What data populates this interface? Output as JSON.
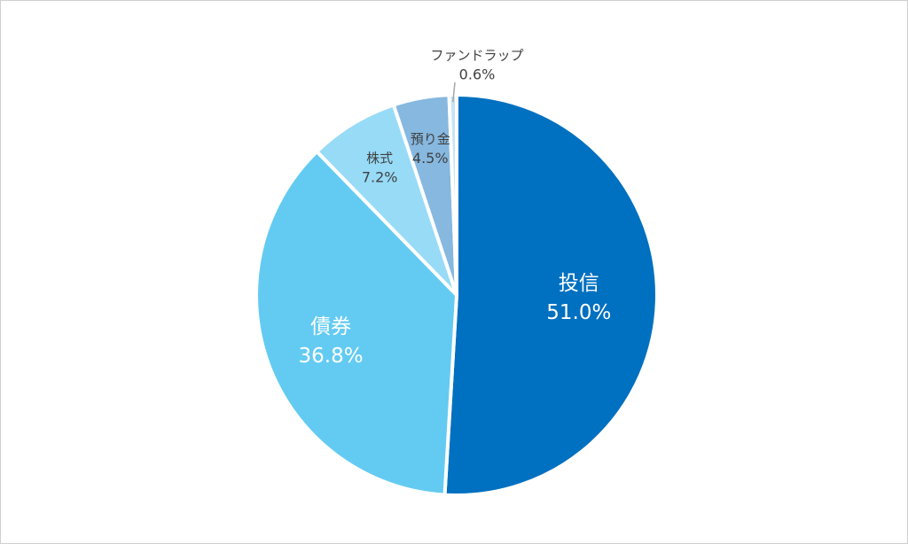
{
  "chart_data": {
    "type": "pie",
    "start_angle_deg": 0,
    "direction": "clockwise",
    "slices": [
      {
        "label": "投信",
        "value": 51.0,
        "value_label": "51.0%",
        "color": "#0070c0",
        "text_color": "#ffffff"
      },
      {
        "label": "債券",
        "value": 36.8,
        "value_label": "36.8%",
        "color": "#63cbf2",
        "text_color": "#ffffff"
      },
      {
        "label": "株式",
        "value": 7.2,
        "value_label": "7.2%",
        "color": "#97dbf7",
        "text_color": "#404040"
      },
      {
        "label": "預り金",
        "value": 4.5,
        "value_label": "4.5%",
        "color": "#86b8e0",
        "text_color": "#404040"
      },
      {
        "label": "ファンドラップ",
        "value": 0.6,
        "value_label": "0.6%",
        "color": "#c5e3f5",
        "text_color": "#404040"
      }
    ]
  }
}
